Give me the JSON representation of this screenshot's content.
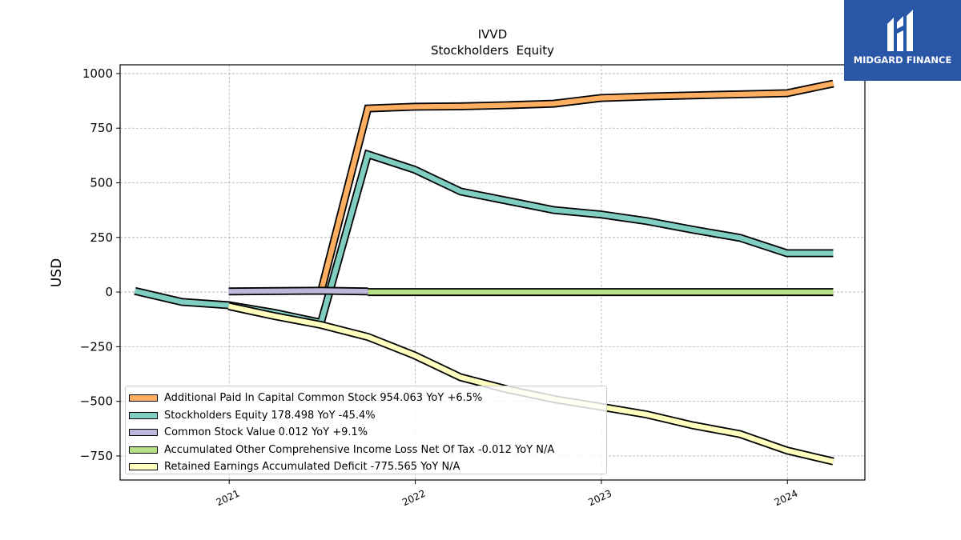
{
  "chart_data": {
    "type": "line",
    "title": "IVVD",
    "subtitle": "Stockholders  Equity",
    "xlabel": "",
    "ylabel": "USD",
    "xlim": [
      "2020-06-01",
      "2024-06-01"
    ],
    "ylim": [
      -860,
      1040
    ],
    "x_ticks": [
      "2021",
      "2022",
      "2023",
      "2024"
    ],
    "y_ticks": [
      1000,
      750,
      500,
      250,
      0,
      -250,
      -500,
      -750
    ],
    "y_tick_labels": [
      "1000",
      "750",
      "500",
      "250",
      "0",
      "−250",
      "−500",
      "−750"
    ],
    "grid": true,
    "legend_position": "lower-left",
    "series": [
      {
        "name": "Additional Paid In Capital Common Stock",
        "legend": "Additional Paid In Capital Common Stock  954.063 YoY +6.5%",
        "color": "#fdae61",
        "x": [
          "2021-06-30",
          "2021-09-30",
          "2021-12-31",
          "2022-03-31",
          "2022-06-30",
          "2022-09-30",
          "2022-12-31",
          "2023-03-31",
          "2023-06-30",
          "2023-09-30",
          "2023-12-31",
          "2024-03-31"
        ],
        "values": [
          2,
          840,
          848,
          850,
          855,
          862,
          888,
          895,
          900,
          905,
          910,
          954
        ]
      },
      {
        "name": "Stockholders Equity",
        "legend": "Stockholders Equity  178.498 YoY -45.4%",
        "color": "#80cdc1",
        "x": [
          "2020-06-30",
          "2020-09-30",
          "2020-12-31",
          "2021-03-31",
          "2021-06-30",
          "2021-09-30",
          "2021-12-31",
          "2022-03-31",
          "2022-06-30",
          "2022-09-30",
          "2022-12-31",
          "2023-03-31",
          "2023-06-30",
          "2023-09-30",
          "2023-12-31",
          "2024-03-31"
        ],
        "values": [
          5,
          -45,
          -60,
          -95,
          -140,
          630,
          560,
          460,
          418,
          375,
          355,
          325,
          285,
          248,
          178,
          178
        ]
      },
      {
        "name": "Common Stock Value",
        "legend": "Common Stock Value  0.012 YoY +9.1%",
        "color": "#bcb6db",
        "x": [
          "2020-12-31",
          "2021-06-30",
          "2021-09-30"
        ],
        "values": [
          3,
          6,
          3
        ]
      },
      {
        "name": "Accumulated Other Comprehensive Income Loss Net Of Tax",
        "legend": "Accumulated Other Comprehensive Income Loss Net Of Tax  -0.012 YoY N/A",
        "color": "#b8e186",
        "x": [
          "2021-09-30",
          "2024-03-31"
        ],
        "values": [
          0,
          0
        ]
      },
      {
        "name": "Retained Earnings Accumulated Deficit",
        "legend": "Retained Earnings Accumulated Deficit  -775.565 YoY N/A",
        "color": "#ffffbf",
        "x": [
          "2020-12-31",
          "2021-03-31",
          "2021-06-30",
          "2021-09-30",
          "2021-12-31",
          "2022-03-31",
          "2022-06-30",
          "2022-09-30",
          "2022-12-31",
          "2023-03-31",
          "2023-06-30",
          "2023-09-30",
          "2023-12-31",
          "2024-03-31"
        ],
        "values": [
          -65,
          -110,
          -150,
          -205,
          -290,
          -390,
          -445,
          -490,
          -525,
          -560,
          -610,
          -650,
          -725,
          -775
        ]
      }
    ]
  },
  "logo": {
    "text": "MIDGARD FINANCE",
    "background": "#2a56a8"
  }
}
